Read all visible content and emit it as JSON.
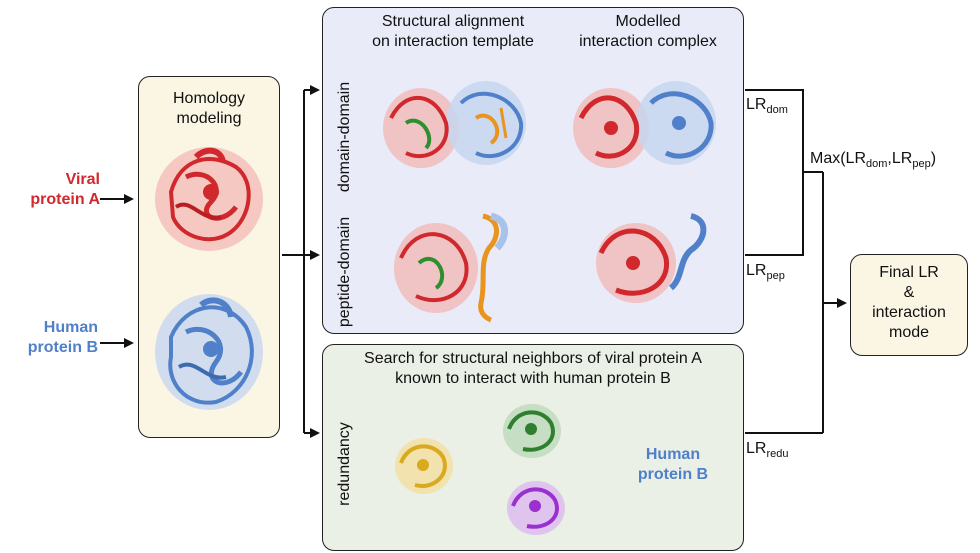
{
  "inputs": {
    "viral_line1": "Viral",
    "viral_line2": "protein A",
    "human_line1": "Human",
    "human_line2": "protein B"
  },
  "homology": {
    "line1": "Homology",
    "line2": "modeling"
  },
  "top_panel": {
    "col1_line1": "Structural alignment",
    "col1_line2": "on interaction template",
    "col2_line1": "Modelled",
    "col2_line2": "interaction complex",
    "row1_label": "domain-domain",
    "row2_label": "peptide-domain"
  },
  "bottom_panel": {
    "title_line1": "Search for structural neighbors of viral protein A",
    "title_line2": "known to interact with human protein B",
    "row_label": "redundancy",
    "human_line1": "Human",
    "human_line2": "protein B"
  },
  "scores": {
    "lr": "LR",
    "dom": "dom",
    "pep": "pep",
    "redu": "redu",
    "max_prefix": "Max(LR",
    "max_mid": ",LR",
    "max_suffix": ")"
  },
  "final": {
    "line1": "Final LR",
    "line2": "&",
    "line3": "interaction",
    "line4": "mode"
  },
  "colors": {
    "viral": "#d0282c",
    "human": "#4f80c9",
    "ligand": "#e8941f",
    "neighbor_yellow": "#d9a91e",
    "neighbor_green": "#2f7f2f",
    "neighbor_purple": "#9b2fd0"
  }
}
